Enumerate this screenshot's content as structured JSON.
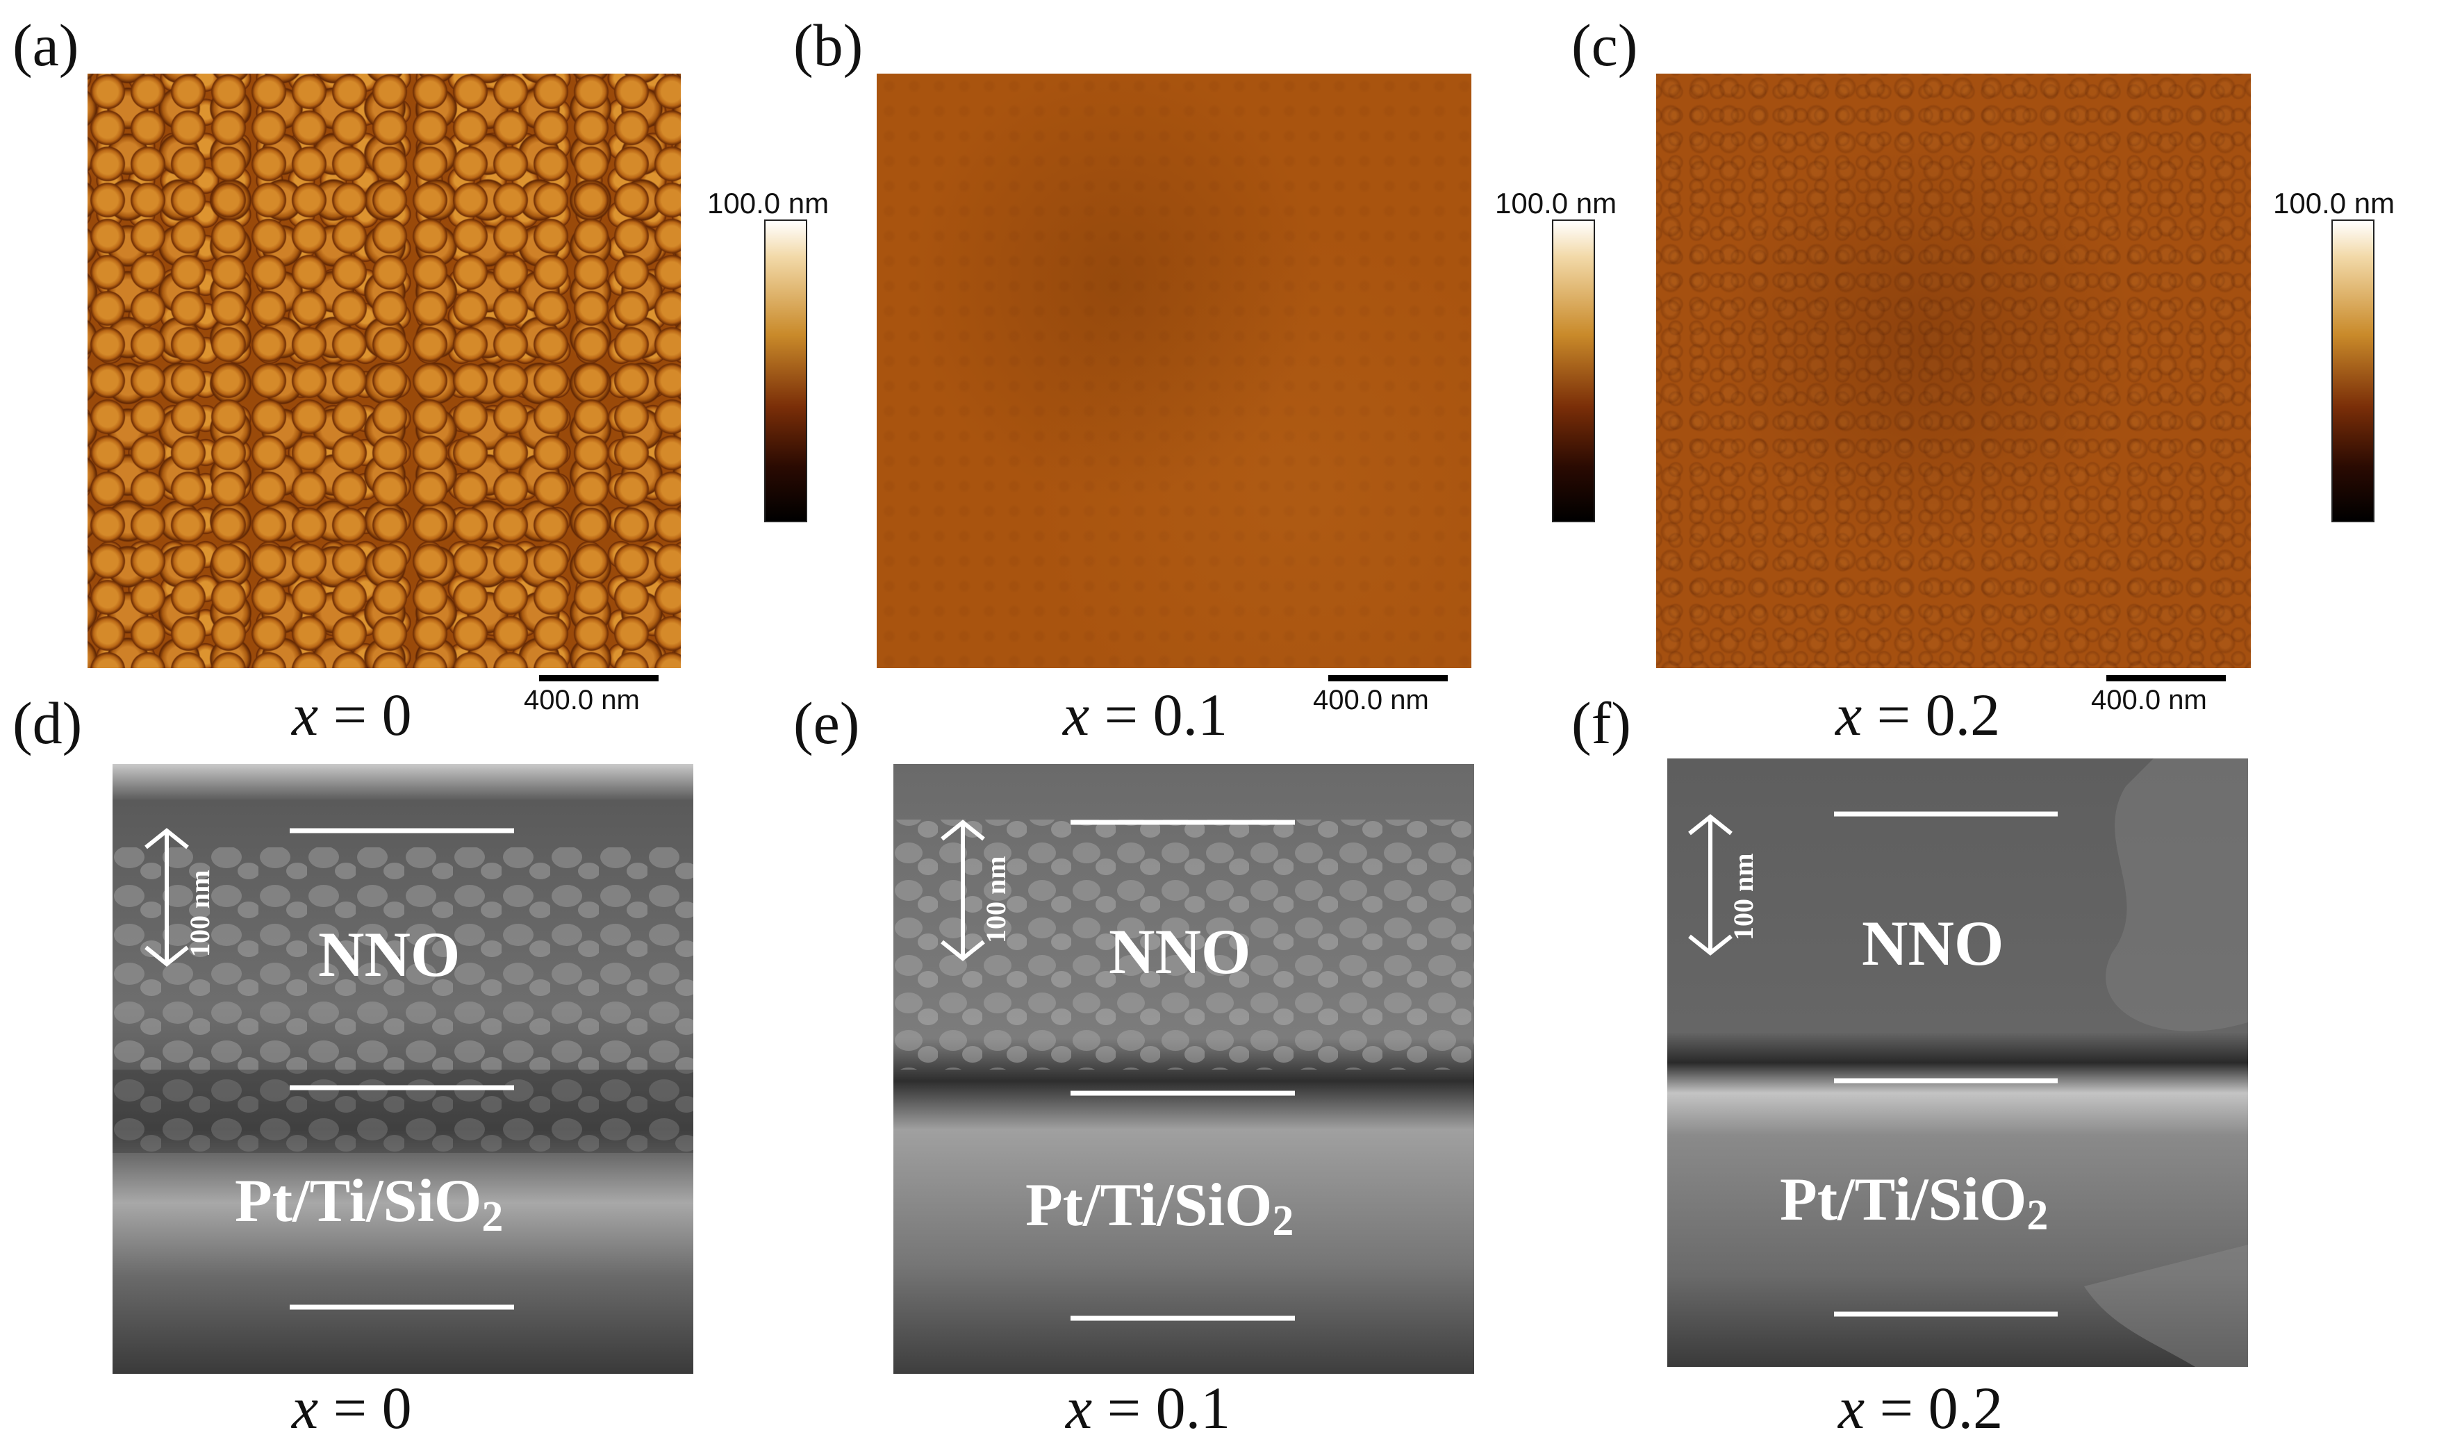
{
  "panels": {
    "a": {
      "label": "(a)",
      "x_prefix": "x",
      "caption": " = 0",
      "colorbar_max": "100.0 nm",
      "scale": "400.0 nm"
    },
    "b": {
      "label": "(b)",
      "x_prefix": "x",
      "caption": " = 0.1",
      "colorbar_max": "100.0 nm",
      "scale": "400.0 nm"
    },
    "c": {
      "label": "(c)",
      "x_prefix": "x",
      "caption": " = 0.2",
      "colorbar_max": "100.0 nm",
      "scale": "400.0 nm"
    },
    "d": {
      "label": "(d)",
      "x_prefix": "x",
      "caption": " = 0",
      "layer_top": "NNO",
      "layer_bottom": "Pt/Ti/SiO",
      "layer_bottom_sub": "2",
      "marker": "100 nm"
    },
    "e": {
      "label": "(e)",
      "x_prefix": "x",
      "caption": " = 0.1",
      "layer_top": "NNO",
      "layer_bottom": "Pt/Ti/SiO",
      "layer_bottom_sub": "2",
      "marker": "100 nm"
    },
    "f": {
      "label": "(f)",
      "x_prefix": "x",
      "caption": " = 0.2",
      "layer_top": "NNO",
      "layer_bottom": "Pt/Ti/SiO",
      "layer_bottom_sub": "2",
      "marker": "100 nm"
    }
  },
  "colors": {
    "afm_base": "#a8530f",
    "sem_gray": "#6f6f6f",
    "line_white": "#ffffff"
  }
}
